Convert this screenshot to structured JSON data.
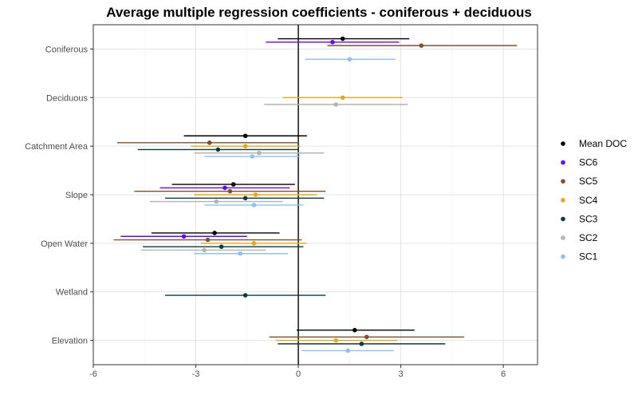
{
  "chart_data": {
    "type": "forest",
    "title": "Average multiple regression coefficients - coniferous + deciduous",
    "xlabel": "",
    "ylabel": "",
    "xlim": [
      -6,
      7
    ],
    "xticks": [
      -6,
      -3,
      0,
      3,
      6
    ],
    "categories": [
      "Coniferous",
      "Deciduous",
      "Catchment Area",
      "Slope",
      "Open Water",
      "Wetland",
      "Elevation"
    ],
    "grid": true,
    "legend_position": "right",
    "reference_line_x": 0,
    "series": [
      {
        "name": "Mean DOC",
        "color": "#000000",
        "points": [
          {
            "category": "Coniferous",
            "est": 1.3,
            "lo": -0.6,
            "hi": 3.25
          },
          {
            "category": "Catchment Area",
            "est": -1.55,
            "lo": -3.35,
            "hi": 0.25
          },
          {
            "category": "Slope",
            "est": -1.9,
            "lo": -3.7,
            "hi": -0.1
          },
          {
            "category": "Open Water",
            "est": -2.45,
            "lo": -4.3,
            "hi": -0.55
          },
          {
            "category": "Elevation",
            "est": 1.65,
            "lo": -0.05,
            "hi": 3.4
          }
        ]
      },
      {
        "name": "SC6",
        "color": "#6a00ff",
        "points": [
          {
            "category": "Coniferous",
            "est": 1.0,
            "lo": -0.95,
            "hi": 2.95
          },
          {
            "category": "Slope",
            "est": -2.15,
            "lo": -4.05,
            "hi": -0.25
          },
          {
            "category": "Open Water",
            "est": -3.35,
            "lo": -5.2,
            "hi": -1.5
          }
        ]
      },
      {
        "name": "SC5",
        "color": "#7a5230",
        "points": [
          {
            "category": "Coniferous",
            "est": 3.6,
            "lo": 0.85,
            "hi": 6.4
          },
          {
            "category": "Catchment Area",
            "est": -2.6,
            "lo": -5.3,
            "hi": 0.0
          },
          {
            "category": "Slope",
            "est": -2.0,
            "lo": -4.8,
            "hi": 0.8
          },
          {
            "category": "Open Water",
            "est": -2.65,
            "lo": -5.4,
            "hi": 0.1
          },
          {
            "category": "Elevation",
            "est": 2.0,
            "lo": -0.85,
            "hi": 4.85
          }
        ]
      },
      {
        "name": "SC4",
        "color": "#e6a817",
        "points": [
          {
            "category": "Deciduous",
            "est": 1.3,
            "lo": -0.45,
            "hi": 3.05
          },
          {
            "category": "Catchment Area",
            "est": -1.55,
            "lo": -3.15,
            "hi": 0.05
          },
          {
            "category": "Slope",
            "est": -1.25,
            "lo": -3.05,
            "hi": 0.55
          },
          {
            "category": "Open Water",
            "est": -1.3,
            "lo": -2.85,
            "hi": 0.25
          },
          {
            "category": "Elevation",
            "est": 1.1,
            "lo": -0.65,
            "hi": 2.9
          }
        ]
      },
      {
        "name": "SC3",
        "color": "#0d3b3e",
        "points": [
          {
            "category": "Catchment Area",
            "est": -2.35,
            "lo": -4.7,
            "hi": 0.0
          },
          {
            "category": "Slope",
            "est": -1.55,
            "lo": -3.9,
            "hi": 0.75
          },
          {
            "category": "Open Water",
            "est": -2.25,
            "lo": -4.55,
            "hi": 0.15
          },
          {
            "category": "Wetland",
            "est": -1.55,
            "lo": -3.9,
            "hi": 0.8
          },
          {
            "category": "Elevation",
            "est": 1.85,
            "lo": -0.6,
            "hi": 4.3
          }
        ]
      },
      {
        "name": "SC2",
        "color": "#b3b3b3",
        "points": [
          {
            "category": "Deciduous",
            "est": 1.1,
            "lo": -1.0,
            "hi": 3.2
          },
          {
            "category": "Catchment Area",
            "est": -1.15,
            "lo": -3.05,
            "hi": 0.75
          },
          {
            "category": "Slope",
            "est": -2.4,
            "lo": -4.35,
            "hi": -0.45
          },
          {
            "category": "Open Water",
            "est": -2.75,
            "lo": -4.6,
            "hi": -0.95
          }
        ]
      },
      {
        "name": "SC1",
        "color": "#8ec0f5",
        "points": [
          {
            "category": "Coniferous",
            "est": 1.5,
            "lo": 0.2,
            "hi": 2.85
          },
          {
            "category": "Catchment Area",
            "est": -1.35,
            "lo": -2.75,
            "hi": 0.05
          },
          {
            "category": "Slope",
            "est": -1.3,
            "lo": -2.75,
            "hi": 0.15
          },
          {
            "category": "Open Water",
            "est": -1.7,
            "lo": -3.05,
            "hi": -0.3
          },
          {
            "category": "Elevation",
            "est": 1.45,
            "lo": 0.1,
            "hi": 2.8
          }
        ]
      }
    ],
    "legend_order": [
      "Mean DOC",
      "SC6",
      "SC5",
      "SC4",
      "SC3",
      "SC2",
      "SC1"
    ]
  }
}
